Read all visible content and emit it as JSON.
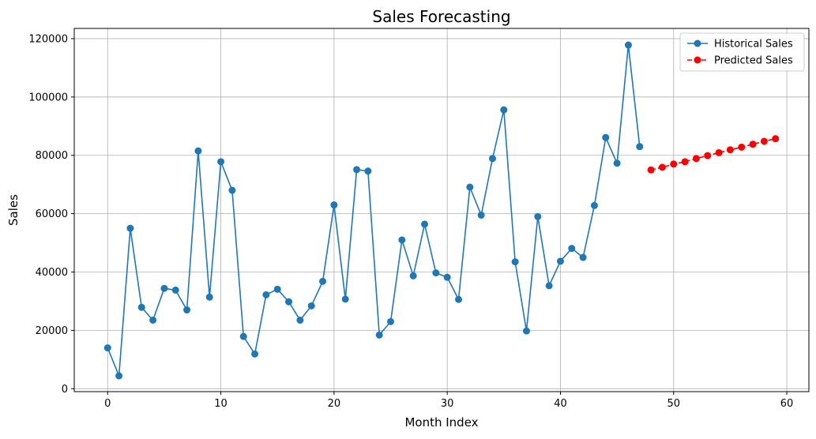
{
  "chart_data": {
    "type": "line",
    "title": "Sales Forecasting",
    "xlabel": "Month Index",
    "ylabel": "Sales",
    "xlim": [
      -2.95,
      61.95
    ],
    "ylim": [
      -1000,
      123500
    ],
    "xticks": [
      0,
      10,
      20,
      30,
      40,
      50,
      60
    ],
    "yticks": [
      0,
      20000,
      40000,
      60000,
      80000,
      100000,
      120000
    ],
    "grid": true,
    "legend_position": "top-right",
    "series": [
      {
        "name": "Historical Sales",
        "color": "#1f77b4",
        "linestyle": "solid",
        "marker": "circle",
        "x": [
          0,
          1,
          2,
          3,
          4,
          5,
          6,
          7,
          8,
          9,
          10,
          11,
          12,
          13,
          14,
          15,
          16,
          17,
          18,
          19,
          20,
          21,
          22,
          23,
          24,
          25,
          26,
          27,
          28,
          29,
          30,
          31,
          32,
          33,
          34,
          35,
          36,
          37,
          38,
          39,
          40,
          41,
          42,
          43,
          44,
          45,
          46,
          47
        ],
        "values": [
          14000,
          4400,
          55000,
          27900,
          23500,
          34400,
          33800,
          27000,
          81500,
          31400,
          77800,
          68000,
          17900,
          11900,
          32200,
          34100,
          29800,
          23500,
          28400,
          36800,
          63000,
          30700,
          75100,
          74600,
          18400,
          23000,
          51000,
          38700,
          56400,
          39700,
          38200,
          30600,
          69100,
          59500,
          78900,
          95600,
          43500,
          19800,
          59000,
          35300,
          43700,
          48100,
          45000,
          62800,
          86100,
          77300,
          117800,
          83000
        ]
      },
      {
        "name": "Predicted Sales",
        "color": "#ff0000",
        "linestyle": "dashed",
        "marker": "circle",
        "x": [
          48,
          49,
          50,
          51,
          52,
          53,
          54,
          55,
          56,
          57,
          58,
          59
        ],
        "values": [
          75000,
          75900,
          77000,
          77800,
          78900,
          79900,
          80900,
          81900,
          82800,
          83800,
          84800,
          85700
        ]
      }
    ]
  }
}
